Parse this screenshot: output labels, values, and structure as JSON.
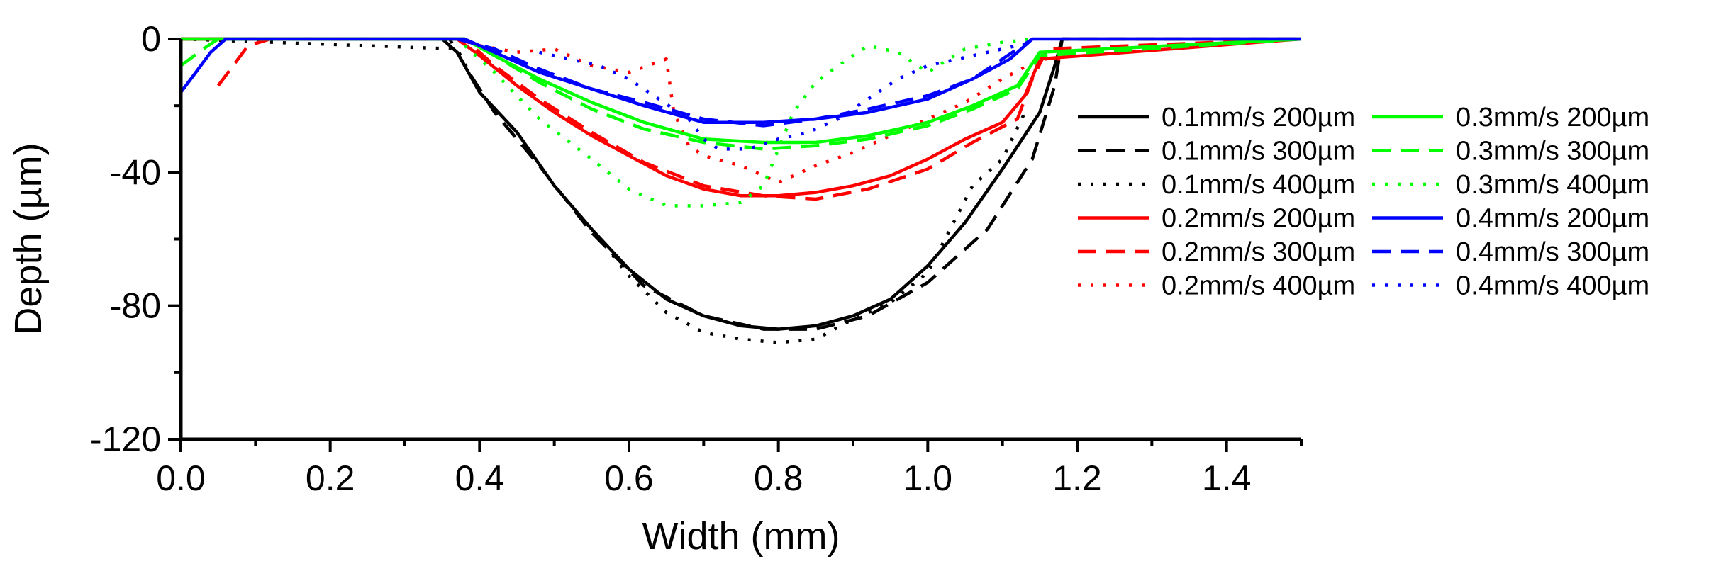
{
  "chart_data": {
    "type": "line",
    "title": "",
    "xlabel": "Width (mm)",
    "ylabel": "Depth (µm)",
    "xlim": [
      0.0,
      1.5
    ],
    "ylim": [
      -120,
      0
    ],
    "xticks": [
      0.0,
      0.2,
      0.4,
      0.6,
      0.8,
      1.0,
      1.2,
      1.4
    ],
    "xtick_labels": [
      "0.0",
      "0.2",
      "0.4",
      "0.6",
      "0.8",
      "1.0",
      "1.2",
      "1.4"
    ],
    "yticks": [
      0,
      -40,
      -80,
      -120
    ],
    "ytick_labels": [
      "0",
      "-40",
      "-80",
      "-120"
    ],
    "grid": false,
    "legend_position": "right, two columns",
    "series": [
      {
        "name": "0.1mm/s 200µm",
        "color": "#000000",
        "dash": "solid",
        "x": [
          0.0,
          0.35,
          0.37,
          0.4,
          0.45,
          0.5,
          0.55,
          0.6,
          0.65,
          0.7,
          0.75,
          0.8,
          0.85,
          0.9,
          0.95,
          1.0,
          1.05,
          1.1,
          1.15,
          1.17,
          1.18,
          1.5
        ],
        "y": [
          0,
          0,
          -4,
          -16,
          -28,
          -44,
          -57,
          -69,
          -78,
          -83,
          -86,
          -87,
          -86,
          -83,
          -78,
          -68,
          -55,
          -39,
          -22,
          -8,
          0,
          0
        ]
      },
      {
        "name": "0.1mm/s 300µm",
        "color": "#000000",
        "dash": "dash",
        "x": [
          0.0,
          0.36,
          0.38,
          0.42,
          0.48,
          0.55,
          0.62,
          0.7,
          0.78,
          0.85,
          0.92,
          1.0,
          1.08,
          1.14,
          1.17,
          1.18,
          1.5
        ],
        "y": [
          0,
          0,
          -8,
          -22,
          -38,
          -58,
          -74,
          -83,
          -87,
          -87,
          -83,
          -73,
          -57,
          -36,
          -14,
          0,
          0
        ]
      },
      {
        "name": "0.1mm/s 400µm",
        "color": "#000000",
        "dash": "dot",
        "x": [
          0.0,
          0.37,
          0.4,
          0.45,
          0.5,
          0.55,
          0.6,
          0.65,
          0.7,
          0.75,
          0.8,
          0.85,
          0.9,
          0.95,
          1.0,
          1.06,
          1.1,
          1.13
        ],
        "y": [
          0,
          -3,
          -16,
          -28,
          -44,
          -57,
          -71,
          -82,
          -88,
          -90,
          -91,
          -90,
          -84,
          -79,
          -70,
          -44,
          -36,
          -22
        ]
      },
      {
        "name": "0.2mm/s 200µm",
        "color": "#ff0000",
        "dash": "solid",
        "x": [
          0.0,
          0.37,
          0.4,
          0.45,
          0.5,
          0.55,
          0.6,
          0.65,
          0.7,
          0.75,
          0.8,
          0.85,
          0.9,
          0.95,
          1.0,
          1.05,
          1.1,
          1.13,
          1.15,
          1.5
        ],
        "y": [
          0,
          0,
          -5,
          -14,
          -22,
          -29,
          -35,
          -41,
          -45,
          -47,
          -47,
          -46,
          -44,
          -41,
          -36,
          -30,
          -25,
          -17,
          -6,
          0
        ]
      },
      {
        "name": "0.2mm/s 300µm",
        "color": "#ff0000",
        "dash": "dash",
        "x": [
          0.05,
          0.07,
          0.09,
          0.12,
          0.38,
          0.42,
          0.48,
          0.55,
          0.62,
          0.7,
          0.78,
          0.85,
          0.92,
          1.0,
          1.06,
          1.12,
          1.14,
          1.16,
          1.5
        ],
        "y": [
          -14,
          -8,
          -2,
          0,
          0,
          -8,
          -18,
          -28,
          -37,
          -44,
          -47,
          -48,
          -45,
          -39,
          -31,
          -24,
          -12,
          -3,
          0
        ]
      },
      {
        "name": "0.2mm/s 400µm",
        "color": "#ff0000",
        "dash": "dot",
        "x": [
          0.4,
          0.45,
          0.5,
          0.55,
          0.6,
          0.65,
          0.66,
          0.68,
          0.7,
          0.75,
          0.8,
          0.85,
          0.9,
          0.95,
          1.0,
          1.05,
          1.1,
          1.15,
          1.18,
          1.2
        ],
        "y": [
          -2,
          -4,
          -3,
          -8,
          -10,
          -6,
          -22,
          -32,
          -35,
          -38,
          -43,
          -38,
          -34,
          -29,
          -24,
          -19,
          -12,
          -6,
          -6,
          -3
        ]
      },
      {
        "name": "0.3mm/s 200µm",
        "color": "#00ff00",
        "dash": "solid",
        "x": [
          0.0,
          0.38,
          0.42,
          0.48,
          0.55,
          0.62,
          0.7,
          0.78,
          0.85,
          0.92,
          1.0,
          1.06,
          1.12,
          1.15,
          1.5
        ],
        "y": [
          0,
          0,
          -5,
          -12,
          -19,
          -25,
          -30,
          -31,
          -31,
          -29,
          -25,
          -20,
          -14,
          -4,
          0
        ]
      },
      {
        "name": "0.3mm/s 300µm",
        "color": "#00ff00",
        "dash": "dash",
        "x": [
          0.0,
          0.03,
          0.05,
          0.38,
          0.42,
          0.48,
          0.55,
          0.62,
          0.7,
          0.78,
          0.85,
          0.92,
          1.0,
          1.06,
          1.12,
          1.15,
          1.5
        ],
        "y": [
          -8,
          -3,
          0,
          0,
          -5,
          -13,
          -21,
          -27,
          -31,
          -33,
          -32,
          -30,
          -26,
          -21,
          -15,
          -5,
          0
        ]
      },
      {
        "name": "0.3mm/s 400µm",
        "color": "#00ff00",
        "dash": "dot",
        "x": [
          0.38,
          0.42,
          0.48,
          0.55,
          0.6,
          0.65,
          0.7,
          0.75,
          0.78,
          0.8,
          0.82,
          0.85,
          0.88,
          0.92,
          0.96,
          1.0,
          1.05,
          1.1,
          1.14
        ],
        "y": [
          -2,
          -10,
          -24,
          -36,
          -45,
          -50,
          -50,
          -49,
          -44,
          -33,
          -22,
          -13,
          -8,
          -2,
          -4,
          -10,
          -3,
          -1,
          0
        ]
      },
      {
        "name": "0.4mm/s 200µm",
        "color": "#0000ff",
        "dash": "solid",
        "x": [
          0.0,
          0.02,
          0.04,
          0.06,
          0.38,
          0.42,
          0.48,
          0.55,
          0.62,
          0.7,
          0.78,
          0.85,
          0.92,
          1.0,
          1.06,
          1.11,
          1.14,
          1.5
        ],
        "y": [
          -16,
          -10,
          -4,
          0,
          0,
          -4,
          -10,
          -15,
          -20,
          -25,
          -25,
          -24,
          -22,
          -18,
          -12,
          -6,
          0,
          0
        ]
      },
      {
        "name": "0.4mm/s 300µm",
        "color": "#0000ff",
        "dash": "dash",
        "x": [
          0.37,
          0.42,
          0.48,
          0.55,
          0.62,
          0.7,
          0.78,
          0.85,
          0.92,
          1.0,
          1.06,
          1.1,
          1.14
        ],
        "y": [
          0,
          -3,
          -9,
          -15,
          -19,
          -24,
          -26,
          -24,
          -21,
          -17,
          -12,
          -6,
          0
        ]
      },
      {
        "name": "0.4mm/s 400µm",
        "color": "#0000ff",
        "dash": "dot",
        "x": [
          0.48,
          0.52,
          0.56,
          0.6,
          0.64,
          0.68,
          0.7,
          0.72,
          0.76,
          0.8,
          0.84,
          0.88,
          0.92,
          0.96,
          1.0,
          1.04,
          1.08,
          1.12
        ],
        "y": [
          -4,
          -6,
          -8,
          -12,
          -18,
          -24,
          -30,
          -33,
          -33,
          -30,
          -28,
          -24,
          -18,
          -12,
          -8,
          -6,
          -4,
          -2
        ]
      }
    ]
  }
}
